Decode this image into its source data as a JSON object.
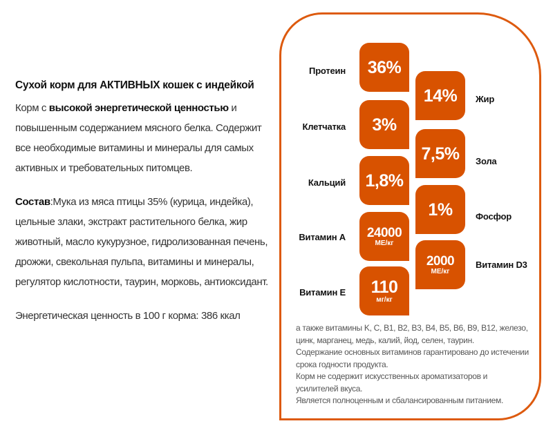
{
  "product": {
    "title": "Сухой корм для АКТИВНЫХ кошек с индейкой",
    "desc_prefix": "Корм с ",
    "desc_bold": "высокой энергетической ценностью",
    "desc_rest": " и повышенным содержанием мясного белка. Содержит все необходимые витамины и минералы для самых активных и требовательных питомцев.",
    "composition_label": "Состав",
    "composition": ":Мука из мяса птицы 35% (курица, индейка), цельные злаки, экстракт растительного белка, жир животный, масло кукурузное, гидролизованная печень, дрожжи, свекольная пульпа, витамины и минералы, регулятор кислотности, таурин, морковь, антиоксидант.",
    "energy": "Энергетическая ценность в 100 г корма: 386 ккал"
  },
  "nutrients": [
    {
      "label": "Протеин",
      "value": "36%",
      "unit": ""
    },
    {
      "label": "Жир",
      "value": "14%",
      "unit": ""
    },
    {
      "label": "Клетчатка",
      "value": "3%",
      "unit": ""
    },
    {
      "label": "Зола",
      "value": "7,5%",
      "unit": ""
    },
    {
      "label": "Кальций",
      "value": "1,8%",
      "unit": ""
    },
    {
      "label": "Фосфор",
      "value": "1%",
      "unit": ""
    },
    {
      "label": "Витамин А",
      "value": "24000",
      "unit": "МЕ/кг"
    },
    {
      "label": "Витамин D3",
      "value": "2000",
      "unit": "МЕ/кг"
    },
    {
      "label": "Витамин Е",
      "value": "110",
      "unit": "мг/кг"
    }
  ],
  "notes": [
    "а также витамины K, C, B1, B2, B3, B4, B5, B6, B9, B12, железо, цинк, марганец, медь, калий, йод, селен, таурин.",
    "Содержание основных витаминов гарантировано до истечении срока годности продукта.",
    "Корм не содержит искусственных ароматизаторов и усилителей вкуса.",
    "Является полноценным и сбалансированным питанием."
  ],
  "colors": {
    "accent": "#d85200"
  }
}
